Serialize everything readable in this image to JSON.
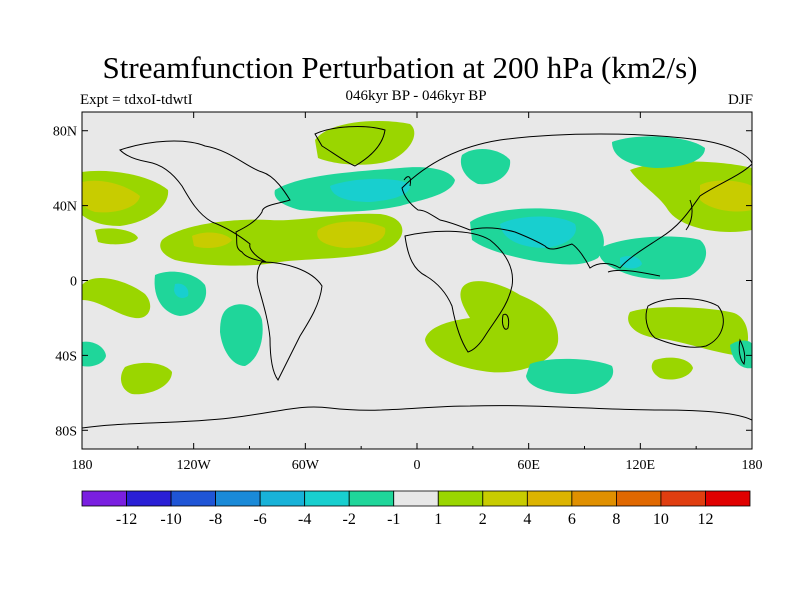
{
  "title": "Streamfunction Perturbation at 200 hPa (km2/s)",
  "left_string": "Expt = tdxoI-tdwtI",
  "center_string": "046kyr BP - 046kyr BP",
  "right_string": "DJF",
  "lat_labels": [
    "80N",
    "40N",
    "0",
    "40S",
    "80S"
  ],
  "lon_labels": [
    "180",
    "120W",
    "60W",
    "0",
    "60E",
    "120E",
    "180"
  ],
  "colorbar": {
    "colors": [
      "#7a1fe0",
      "#2a1fd6",
      "#1f55d6",
      "#1a8ad8",
      "#18b2d8",
      "#18cfcf",
      "#1fd69a",
      "#e8e8e8",
      "#9ad600",
      "#c8cc00",
      "#dcb400",
      "#e09000",
      "#e06800",
      "#e03e10",
      "#e00000"
    ],
    "labels": [
      "-12",
      "-10",
      "-8",
      "-6",
      "-4",
      "-2",
      "-1",
      "1",
      "2",
      "4",
      "6",
      "8",
      "10",
      "12"
    ]
  }
}
